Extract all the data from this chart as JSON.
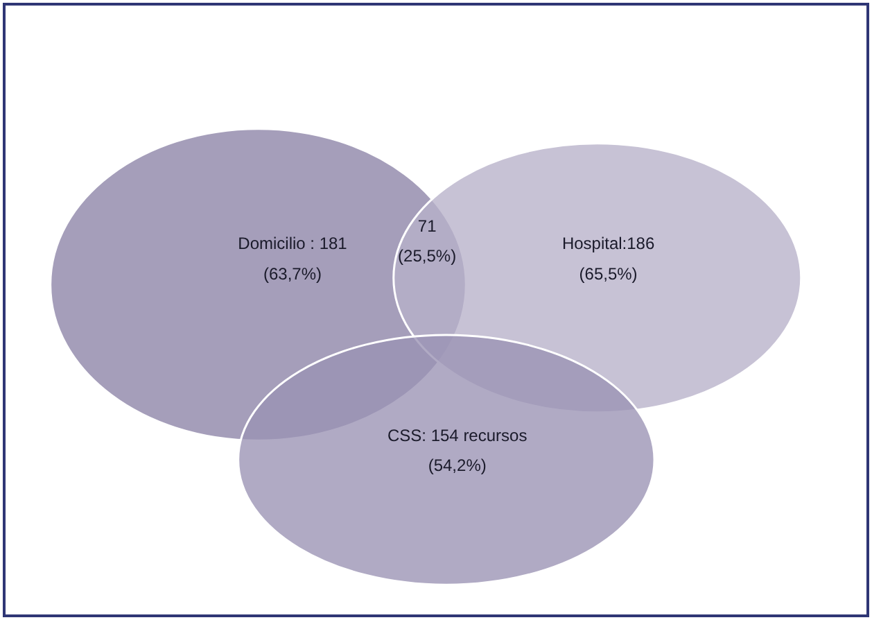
{
  "chart_data": {
    "type": "other",
    "categories": [
      "Domicilio : 181",
      "Hospital:186",
      "CSS: 154 recursos",
      "71"
    ],
    "values": [
      63.7,
      65.5,
      54.2,
      25.5
    ],
    "value_labels": [
      "(63,7%)",
      "(65,5%)",
      "(54,2%)",
      "(25,5%)"
    ],
    "colors": [
      "#8c83a6",
      "#b7b1c9",
      "#9a92b3",
      null
    ]
  }
}
